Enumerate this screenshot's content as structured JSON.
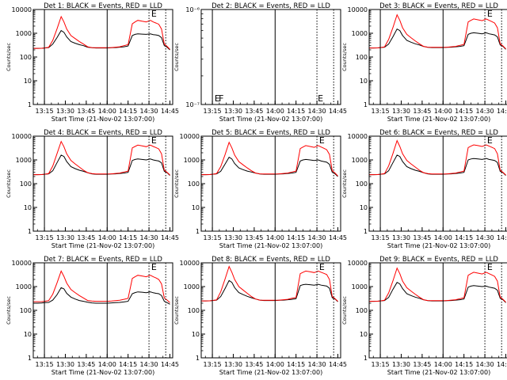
{
  "chart_data": {
    "type": "line",
    "xlabel": "Start Time (21-Nov-02 13:07:00)",
    "ylabel": "Counts/sec",
    "y_scale": "log",
    "ylim": [
      1,
      10000
    ],
    "ylim_det2": [
      1e-07,
      1e-06
    ],
    "yticks": [
      "1",
      "10",
      "100",
      "1000",
      "10000"
    ],
    "yticks_det2": [
      "10⁻⁷",
      "10⁻⁶"
    ],
    "xlim": [
      "13:07",
      "14:47"
    ],
    "xticks": [
      "13:15",
      "13:30",
      "13:45",
      "14:00",
      "14:15",
      "14:30",
      "14:45"
    ],
    "background_color": "#ffffff",
    "series_colors": {
      "events": "#000000",
      "lld": "#ff0000"
    },
    "vertical_markers": [
      {
        "time": "13:15",
        "style": "solid",
        "label": ""
      },
      {
        "time": "14:00",
        "style": "solid",
        "label": ""
      },
      {
        "time": "14:30",
        "style": "dotted",
        "label": ""
      },
      {
        "time": "14:42",
        "style": "dotted",
        "label": ""
      }
    ],
    "x_samples": [
      "13:07",
      "13:10",
      "13:13",
      "13:15",
      "13:18",
      "13:21",
      "13:24",
      "13:27",
      "13:29",
      "13:31",
      "13:34",
      "13:37",
      "13:40",
      "13:43",
      "13:46",
      "13:49",
      "13:52",
      "13:55",
      "13:58",
      "14:00",
      "14:03",
      "14:06",
      "14:09",
      "14:12",
      "14:15",
      "14:18",
      "14:20",
      "14:22",
      "14:25",
      "14:28",
      "14:31",
      "14:33",
      "14:35",
      "14:37",
      "14:39",
      "14:41",
      "14:43",
      "14:45"
    ],
    "panels": [
      {
        "title": "Det 1: BLACK = Events, RED = LLD",
        "letters": [
          {
            "text": "E",
            "time": "14:31",
            "pos": "top"
          }
        ],
        "series": [
          {
            "values": [
              230,
              230,
              232,
              240,
              250,
              350,
              650,
              1300,
              1100,
              700,
              450,
              380,
              330,
              300,
              260,
              245,
              240,
              240,
              240,
              240,
              245,
              250,
              260,
              270,
              290,
              800,
              900,
              950,
              920,
              900,
              940,
              880,
              850,
              800,
              650,
              300,
              260,
              200
            ]
          },
          {
            "values": [
              230,
              230,
              232,
              240,
              255,
              500,
              1500,
              5000,
              3000,
              1500,
              800,
              600,
              450,
              350,
              270,
              250,
              245,
              245,
              245,
              245,
              250,
              260,
              270,
              300,
              330,
              2500,
              3000,
              3500,
              3200,
              3000,
              3500,
              3000,
              2700,
              2400,
              1500,
              350,
              280,
              210
            ]
          }
        ]
      },
      {
        "title": "Det 2: BLACK = Events, RED = LLD",
        "letters": [
          {
            "text": "E",
            "time": "13:16",
            "pos": "bottom"
          },
          {
            "text": "F",
            "time": "13:19",
            "pos": "bottom"
          },
          {
            "text": "E",
            "time": "14:30",
            "pos": "bottom"
          }
        ],
        "series": [
          {
            "values": []
          },
          {
            "values": []
          }
        ]
      },
      {
        "title": "Det 3: BLACK = Events, RED = LLD",
        "letters": [
          {
            "text": "E",
            "time": "14:31",
            "pos": "top"
          }
        ],
        "series": [
          {
            "values": [
              240,
              240,
              242,
              250,
              260,
              350,
              700,
              1500,
              1300,
              800,
              500,
              420,
              360,
              320,
              280,
              255,
              250,
              250,
              250,
              250,
              255,
              260,
              270,
              280,
              300,
              900,
              1000,
              1050,
              1000,
              950,
              1050,
              950,
              900,
              850,
              700,
              320,
              280,
              210
            ]
          },
          {
            "values": [
              240,
              240,
              242,
              250,
              265,
              550,
              1700,
              6000,
              3500,
              1700,
              900,
              650,
              480,
              360,
              280,
              260,
              255,
              255,
              255,
              255,
              260,
              270,
              280,
              310,
              340,
              3000,
              3500,
              4000,
              3700,
              3400,
              4000,
              3500,
              3100,
              2700,
              1700,
              360,
              290,
              220
            ]
          }
        ]
      },
      {
        "title": "Det 4: BLACK = Events, RED = LLD",
        "letters": [
          {
            "text": "E",
            "time": "14:31",
            "pos": "top"
          }
        ],
        "series": [
          {
            "values": [
              240,
              240,
              242,
              250,
              260,
              350,
              750,
              1600,
              1400,
              850,
              520,
              430,
              370,
              330,
              290,
              260,
              250,
              250,
              250,
              250,
              255,
              260,
              270,
              280,
              300,
              950,
              1050,
              1100,
              1050,
              1000,
              1100,
              1000,
              950,
              900,
              750,
              330,
              290,
              220
            ]
          },
          {
            "values": [
              240,
              240,
              242,
              250,
              265,
              550,
              1800,
              6000,
              3600,
              1800,
              950,
              680,
              500,
              370,
              290,
              265,
              255,
              255,
              255,
              255,
              260,
              270,
              280,
              310,
              340,
              3200,
              3700,
              4200,
              3900,
              3600,
              4200,
              3700,
              3300,
              2900,
              1800,
              370,
              300,
              230
            ]
          }
        ]
      },
      {
        "title": "Det 5: BLACK = Events, RED = LLD",
        "letters": [
          {
            "text": "E",
            "time": "14:31",
            "pos": "top"
          }
        ],
        "series": [
          {
            "values": [
              240,
              240,
              242,
              250,
              260,
              330,
              650,
              1300,
              1100,
              700,
              460,
              390,
              340,
              310,
              280,
              255,
              250,
              250,
              250,
              250,
              255,
              260,
              270,
              280,
              300,
              900,
              1000,
              1050,
              1000,
              950,
              1000,
              900,
              850,
              800,
              650,
              300,
              260,
              200
            ]
          },
          {
            "values": [
              240,
              240,
              242,
              250,
              265,
              520,
              1600,
              5500,
              3200,
              1600,
              850,
              620,
              460,
              350,
              280,
              260,
              255,
              255,
              255,
              255,
              260,
              270,
              280,
              310,
              340,
              3000,
              3500,
              4000,
              3700,
              3400,
              4000,
              3500,
              3100,
              2700,
              1700,
              350,
              280,
              210
            ]
          }
        ]
      },
      {
        "title": "Det 6: BLACK = Events, RED = LLD",
        "letters": [
          {
            "text": "E",
            "time": "14:31",
            "pos": "top"
          }
        ],
        "series": [
          {
            "values": [
              240,
              240,
              242,
              250,
              260,
              350,
              750,
              1600,
              1400,
              850,
              520,
              430,
              370,
              330,
              290,
              260,
              250,
              250,
              250,
              250,
              255,
              260,
              270,
              280,
              300,
              1000,
              1100,
              1150,
              1100,
              1050,
              1150,
              1050,
              1000,
              950,
              780,
              330,
              290,
              220
            ]
          },
          {
            "values": [
              240,
              240,
              242,
              250,
              265,
              560,
              1800,
              6500,
              3700,
              1800,
              950,
              680,
              500,
              370,
              290,
              265,
              255,
              255,
              255,
              255,
              260,
              270,
              280,
              310,
              340,
              3300,
              3800,
              4300,
              4000,
              3700,
              4300,
              3800,
              3400,
              3000,
              1800,
              370,
              300,
              230
            ]
          }
        ]
      },
      {
        "title": "Det 7: BLACK = Events, RED = LLD",
        "letters": [
          {
            "text": "E",
            "time": "14:31",
            "pos": "top"
          }
        ],
        "series": [
          {
            "values": [
              200,
              200,
              202,
              210,
              215,
              270,
              450,
              900,
              800,
              520,
              360,
              300,
              260,
              240,
              220,
              205,
              200,
              200,
              200,
              200,
              205,
              210,
              215,
              225,
              240,
              500,
              560,
              600,
              580,
              550,
              600,
              550,
              520,
              500,
              420,
              240,
              210,
              180
            ]
          },
          {
            "values": [
              230,
              230,
              232,
              240,
              255,
              480,
              1400,
              4500,
              2700,
              1400,
              750,
              560,
              420,
              330,
              260,
              245,
              240,
              240,
              240,
              240,
              245,
              255,
              265,
              290,
              320,
              2200,
              2600,
              3000,
              2800,
              2600,
              3000,
              2600,
              2300,
              2000,
              1300,
              330,
              270,
              210
            ]
          }
        ]
      },
      {
        "title": "Det 8: BLACK = Events, RED = LLD",
        "letters": [
          {
            "text": "E",
            "time": "14:31",
            "pos": "top"
          }
        ],
        "series": [
          {
            "values": [
              250,
              250,
              252,
              260,
              270,
              380,
              800,
              1800,
              1500,
              900,
              560,
              460,
              390,
              340,
              300,
              270,
              260,
              260,
              260,
              260,
              265,
              270,
              280,
              290,
              310,
              1100,
              1200,
              1250,
              1200,
              1150,
              1250,
              1150,
              1100,
              1050,
              850,
              340,
              300,
              230
            ]
          },
          {
            "values": [
              250,
              250,
              252,
              260,
              275,
              600,
              2000,
              7000,
              4000,
              2000,
              1000,
              720,
              520,
              380,
              300,
              270,
              265,
              265,
              265,
              265,
              270,
              280,
              290,
              320,
              350,
              3500,
              4000,
              4500,
              4200,
              3900,
              4500,
              4000,
              3600,
              3200,
              2000,
              380,
              310,
              240
            ]
          }
        ]
      },
      {
        "title": "Det 9: BLACK = Events, RED = LLD",
        "letters": [
          {
            "text": "E",
            "time": "14:31",
            "pos": "top"
          }
        ],
        "series": [
          {
            "values": [
              240,
              240,
              242,
              250,
              260,
              350,
              750,
              1500,
              1300,
              820,
              500,
              420,
              360,
              320,
              280,
              255,
              250,
              250,
              250,
              250,
              255,
              260,
              270,
              280,
              300,
              950,
              1050,
              1100,
              1050,
              1000,
              1050,
              950,
              900,
              850,
              700,
              320,
              280,
              210
            ]
          },
          {
            "values": [
              240,
              240,
              242,
              250,
              265,
              540,
              1700,
              6000,
              3500,
              1700,
              900,
              650,
              480,
              360,
              280,
              260,
              255,
              255,
              255,
              255,
              260,
              270,
              280,
              310,
              340,
              3000,
              3500,
              4000,
              3700,
              3400,
              4000,
              3500,
              3100,
              2700,
              1700,
              360,
              290,
              220
            ]
          }
        ]
      }
    ]
  }
}
